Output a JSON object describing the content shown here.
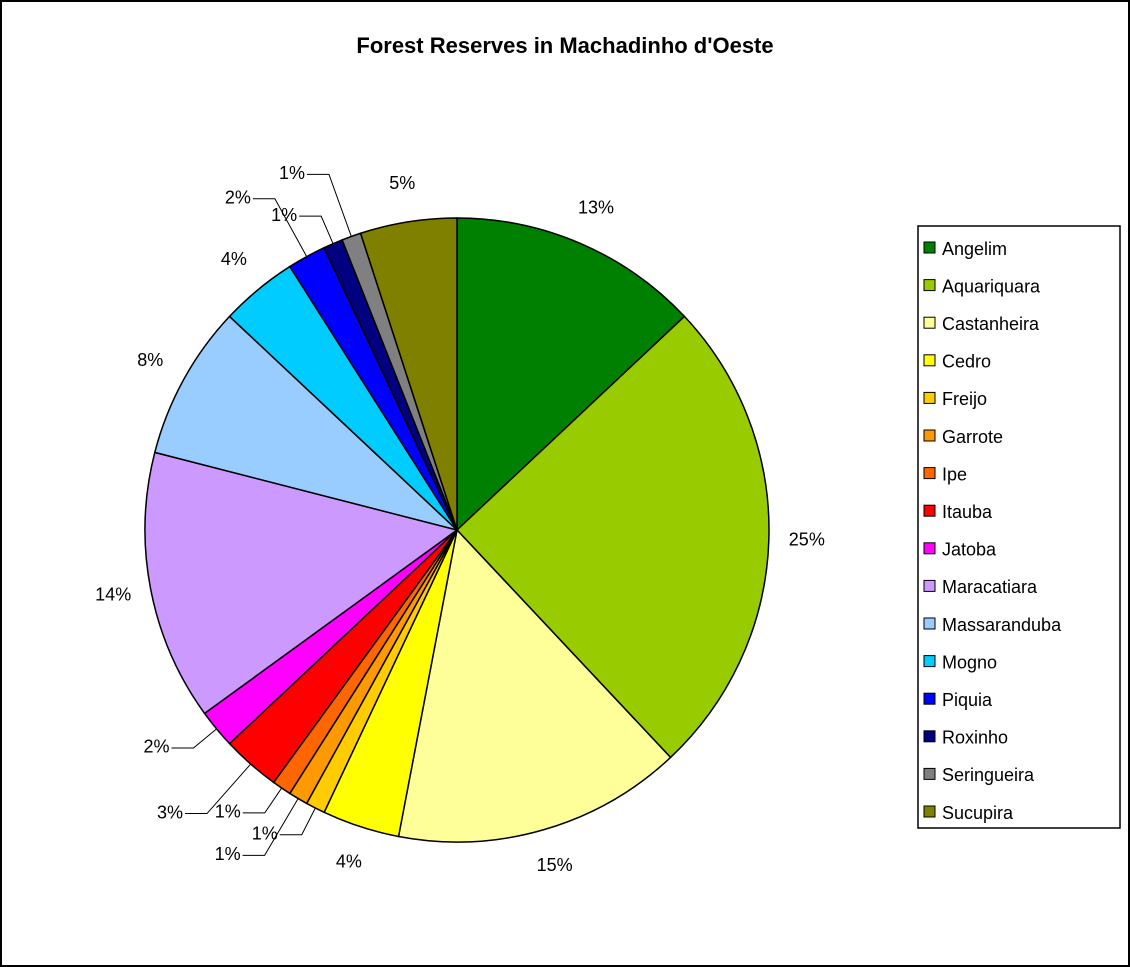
{
  "chart_data": {
    "type": "pie",
    "title": "Forest Reserves in Machadinho d'Oeste",
    "categories": [
      "Angelim",
      "Aquariquara",
      "Castanheira",
      "Cedro",
      "Freijo",
      "Garrote",
      "Ipe",
      "Itauba",
      "Jatoba",
      "Maracatiara",
      "Massaranduba",
      "Mogno",
      "Piquia",
      "Roxinho",
      "Seringueira",
      "Sucupira"
    ],
    "values": [
      13,
      25,
      15,
      4,
      1,
      1,
      1,
      3,
      2,
      14,
      8,
      4,
      2,
      1,
      1,
      5
    ],
    "value_labels": [
      "13%",
      "25%",
      "15%",
      "4%",
      "1%",
      "1%",
      "1%",
      "3%",
      "2%",
      "14%",
      "8%",
      "4%",
      "2%",
      "1%",
      "1%",
      "5%"
    ],
    "colors": [
      "#008000",
      "#99cc00",
      "#ffff99",
      "#ffff00",
      "#ffcc00",
      "#ff9900",
      "#ff6600",
      "#ff0000",
      "#ff00ff",
      "#cc99ff",
      "#99ccff",
      "#00ccff",
      "#0000ff",
      "#000080",
      "#808080",
      "#808000"
    ],
    "legend": "right"
  }
}
